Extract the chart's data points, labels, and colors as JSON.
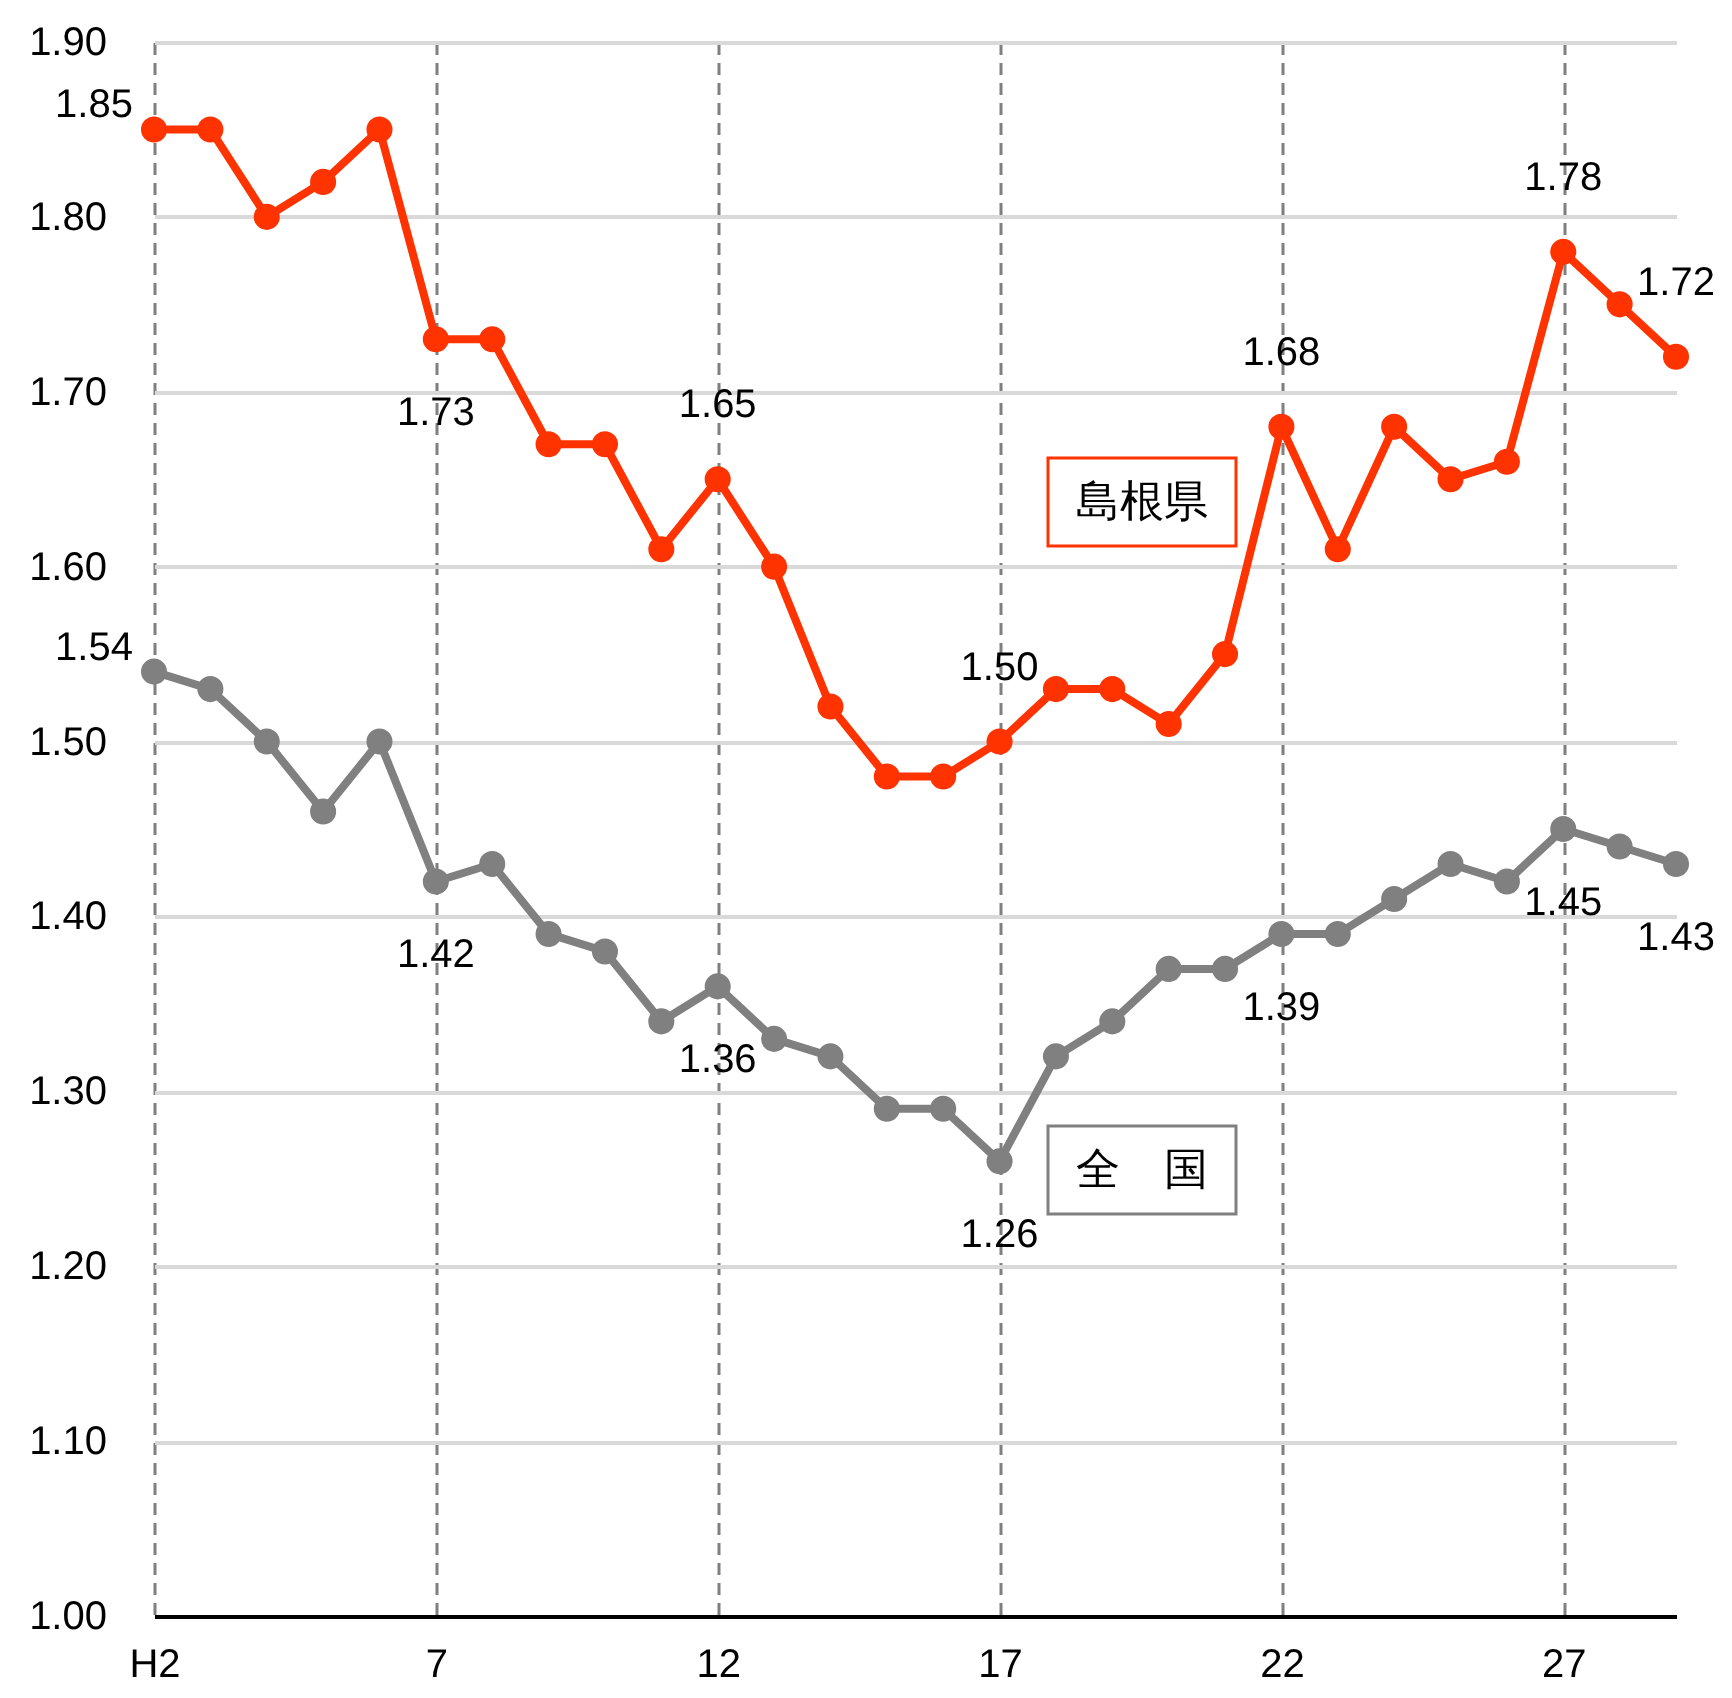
{
  "chart_data": {
    "type": "line",
    "categories": [
      "H2",
      null,
      null,
      null,
      null,
      "7",
      null,
      null,
      null,
      null,
      "12",
      null,
      null,
      null,
      null,
      "17",
      null,
      null,
      null,
      null,
      "22",
      null,
      null,
      null,
      null,
      "27",
      null,
      null
    ],
    "series": [
      {
        "name": "島根県",
        "color": "#ff3300",
        "values": [
          1.85,
          1.85,
          1.8,
          1.82,
          1.85,
          1.73,
          1.73,
          1.67,
          1.67,
          1.61,
          1.65,
          1.6,
          1.52,
          1.48,
          1.48,
          1.5,
          1.53,
          1.53,
          1.51,
          1.55,
          1.68,
          1.61,
          1.68,
          1.65,
          1.66,
          1.78,
          1.75,
          1.72
        ],
        "value_labels": [
          "1.85",
          null,
          null,
          null,
          null,
          "1.73",
          null,
          null,
          null,
          null,
          "1.65",
          null,
          null,
          null,
          null,
          "1.50",
          null,
          null,
          null,
          null,
          "1.68",
          null,
          null,
          null,
          null,
          "1.78",
          null,
          "1.72"
        ]
      },
      {
        "name": "全　国",
        "color": "#808080",
        "values": [
          1.54,
          1.53,
          1.5,
          1.46,
          1.5,
          1.42,
          1.43,
          1.39,
          1.38,
          1.34,
          1.36,
          1.33,
          1.32,
          1.29,
          1.29,
          1.26,
          1.32,
          1.34,
          1.37,
          1.37,
          1.39,
          1.39,
          1.41,
          1.43,
          1.42,
          1.45,
          1.44,
          1.43
        ],
        "value_labels": [
          "1.54",
          null,
          null,
          null,
          null,
          "1.42",
          null,
          null,
          null,
          null,
          "1.36",
          null,
          null,
          null,
          null,
          "1.26",
          null,
          null,
          null,
          null,
          "1.39",
          null,
          null,
          null,
          null,
          "1.45",
          null,
          "1.43"
        ]
      }
    ],
    "ylim": [
      1.0,
      1.9
    ],
    "yticks": [
      {
        "value": 1.0,
        "label": "1.00"
      },
      {
        "value": 1.1,
        "label": "1.10"
      },
      {
        "value": 1.2,
        "label": "1.20"
      },
      {
        "value": 1.3,
        "label": "1.30"
      },
      {
        "value": 1.4,
        "label": "1.40"
      },
      {
        "value": 1.5,
        "label": "1.50"
      },
      {
        "value": 1.6,
        "label": "1.60"
      },
      {
        "value": 1.7,
        "label": "1.70"
      },
      {
        "value": 1.8,
        "label": "1.80"
      },
      {
        "value": 1.9,
        "label": "1.90"
      }
    ],
    "grid": true,
    "marker": "circle",
    "line_style": "solid"
  }
}
